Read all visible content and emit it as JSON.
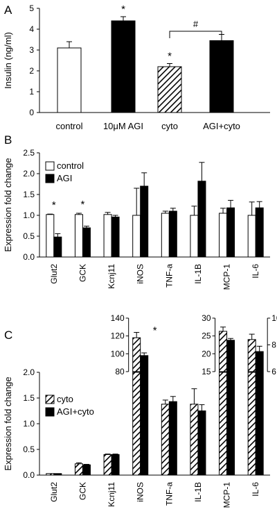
{
  "colors": {
    "control": "#ffffff",
    "treated": "#000000",
    "cyto": "hatch-diagonal",
    "stroke": "#000000"
  },
  "chart_data": [
    {
      "panel": "A",
      "type": "bar",
      "ylabel": "Insulin (ng/ml)",
      "ylim": [
        0,
        5
      ],
      "yticks": [
        "0",
        "1",
        "2",
        "3",
        "4",
        "5"
      ],
      "categories": [
        "control",
        "10μM AGI",
        "cyto",
        "AGI+cyto"
      ],
      "values": [
        3.1,
        4.4,
        2.2,
        3.45
      ],
      "errors": [
        0.3,
        0.2,
        0.15,
        0.3
      ],
      "fills": [
        "white",
        "black",
        "hatch",
        "black"
      ],
      "stars": [
        "",
        "*",
        "*",
        ""
      ],
      "bracket": {
        "between": [
          "cyto",
          "AGI+cyto"
        ],
        "label": "#"
      },
      "grid": false
    },
    {
      "panel": "B",
      "type": "bar",
      "ylabel": "Expression fold change",
      "ylim": [
        0,
        2.5
      ],
      "yticks": [
        "0.0",
        "0.5",
        "1.0",
        "1.5",
        "2.0",
        "2.5"
      ],
      "categories": [
        "Glut2",
        "GCK",
        "Kcnj11",
        "iNOS",
        "TNF-a",
        "IL-1B",
        "MCP-1",
        "IL-6"
      ],
      "legend": [
        "control",
        "AGI"
      ],
      "legend_position": "top-left",
      "series": [
        {
          "name": "control",
          "values": [
            1.02,
            1.02,
            1.02,
            1.0,
            1.05,
            1.0,
            1.05,
            1.0
          ],
          "errors": [
            0.01,
            0.03,
            0.05,
            0.65,
            0.05,
            0.22,
            0.12,
            0.32
          ]
        },
        {
          "name": "AGI",
          "values": [
            0.48,
            0.7,
            0.96,
            1.7,
            1.1,
            1.82,
            1.18,
            1.18
          ],
          "errors": [
            0.08,
            0.04,
            0.04,
            0.32,
            0.07,
            0.45,
            0.18,
            0.15
          ]
        }
      ],
      "stars": [
        "*",
        "*",
        "",
        "",
        "",
        "",
        "",
        ""
      ],
      "grid": false
    },
    {
      "panel": "C",
      "type": "bar",
      "ylabel": "Expression fold change",
      "ylim": [
        0,
        2.0
      ],
      "yticks": [
        "0.0",
        "0.5",
        "1.0",
        "1.5",
        "2.0"
      ],
      "categories": [
        "Glut2",
        "GCK",
        "Kcnj11",
        "iNOS",
        "TNF-a",
        "IL-1B",
        "MCP-1",
        "IL-6"
      ],
      "legend": [
        "cyto",
        "AGI+cyto"
      ],
      "legend_position": "center-left",
      "series": [
        {
          "name": "cyto",
          "values": [
            0.03,
            0.22,
            0.4,
            2.0,
            1.38,
            1.38,
            2.0,
            2.0
          ],
          "errors": [
            0.0,
            0.02,
            0.01,
            0.0,
            0.08,
            0.3,
            0.0,
            0.0
          ]
        },
        {
          "name": "AGI+cyto",
          "values": [
            0.03,
            0.2,
            0.4,
            2.0,
            1.43,
            1.25,
            2.0,
            2.0
          ],
          "errors": [
            0.0,
            0.01,
            0.01,
            0.0,
            0.1,
            0.12,
            0.0,
            0.0
          ]
        }
      ],
      "grid": false,
      "insets": [
        {
          "category": "iNOS",
          "ylim": [
            80,
            140
          ],
          "yticks": [
            "80",
            "100",
            "120",
            "140"
          ],
          "axis_side": "left",
          "values": [
            118,
            98
          ],
          "errors": [
            6,
            3
          ],
          "star": "*"
        },
        {
          "category": "MCP-1",
          "ylim": [
            15,
            30
          ],
          "yticks": [
            "15",
            "20",
            "25",
            "30"
          ],
          "axis_side": "left",
          "values": [
            26.3,
            23.8
          ],
          "errors": [
            1.2,
            0.5
          ],
          "star": ""
        },
        {
          "category": "IL-6",
          "ylim": [
            6,
            10
          ],
          "yticks": [
            "6",
            "8",
            "10"
          ],
          "axis_side": "right",
          "values": [
            8.4,
            7.5
          ],
          "errors": [
            0.4,
            0.4
          ],
          "star": ""
        }
      ]
    }
  ],
  "panels": {
    "a": "A",
    "b": "B",
    "c": "C"
  }
}
